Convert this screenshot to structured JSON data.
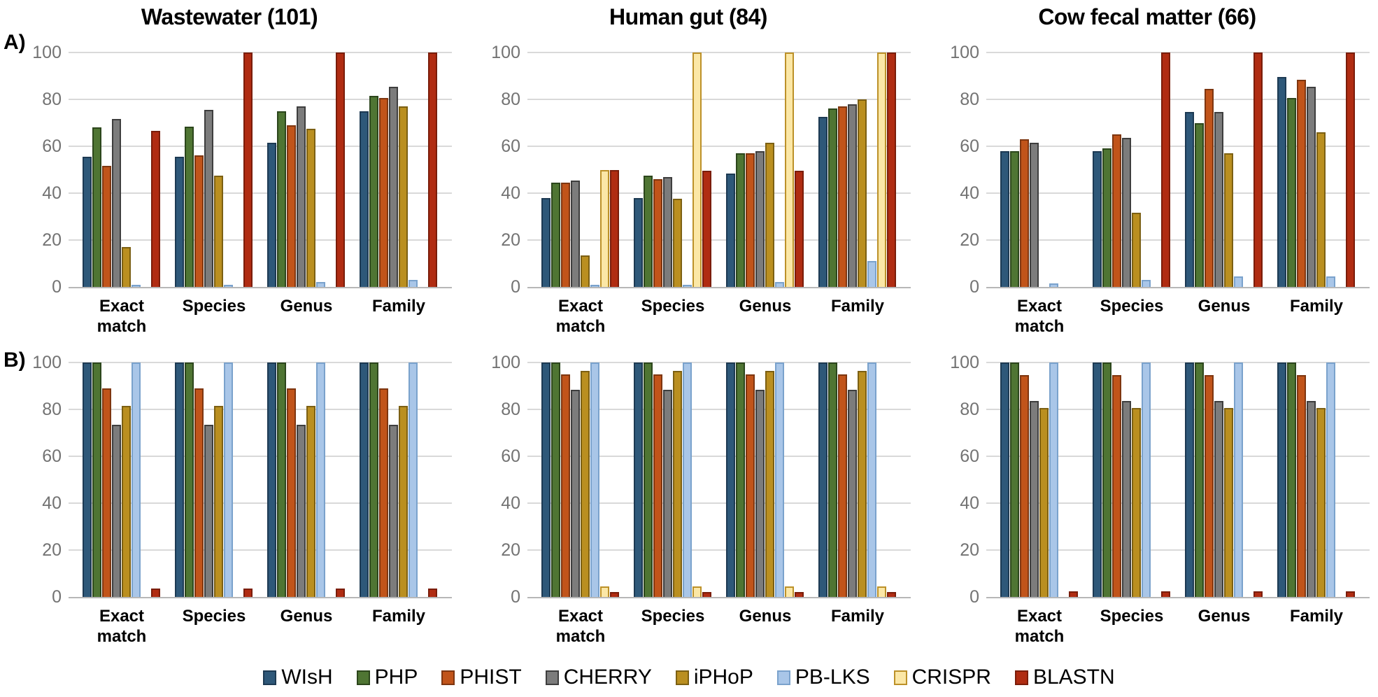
{
  "figure": {
    "panel_a_label": "A)",
    "panel_b_label": "B)"
  },
  "axes": {
    "yticks": [
      0,
      20,
      40,
      60,
      80,
      100
    ],
    "ylim": [
      0,
      100
    ],
    "categories": [
      "Exact match",
      "Species",
      "Genus",
      "Family"
    ]
  },
  "series_colors": {
    "WIsH": {
      "fill": "#2e5879",
      "border": "#1d3a53"
    },
    "PHP": {
      "fill": "#4f7533",
      "border": "#2c461c"
    },
    "PHIST": {
      "fill": "#c1541a",
      "border": "#7e3610"
    },
    "CHERRY": {
      "fill": "#7c7c7c",
      "border": "#3e3e3e"
    },
    "iPHoP": {
      "fill": "#ba8f20",
      "border": "#7c6013"
    },
    "PB-LKS": {
      "fill": "#a9c6e8",
      "border": "#7aa2cc"
    },
    "CRISPR": {
      "fill": "#fbe7a6",
      "border": "#bc9129"
    },
    "BLASTN": {
      "fill": "#b02c12",
      "border": "#7a1d0a"
    }
  },
  "legend": [
    "WIsH",
    "PHP",
    "PHIST",
    "CHERRY",
    "iPHoP",
    "PB-LKS",
    "CRISPR",
    "BLASTN"
  ],
  "chart_data": [
    {
      "type": "bar",
      "row": "A",
      "title": "Wastewater (101)",
      "categories": [
        "Exact match",
        "Species",
        "Genus",
        "Family"
      ],
      "ylim": [
        0,
        100
      ],
      "grid": true,
      "series": [
        {
          "name": "WIsH",
          "values": [
            55.5,
            55.5,
            61.5,
            75
          ]
        },
        {
          "name": "PHP",
          "values": [
            68,
            68.5,
            75,
            81.5
          ]
        },
        {
          "name": "PHIST",
          "values": [
            51.5,
            56,
            69,
            80.5
          ]
        },
        {
          "name": "CHERRY",
          "values": [
            71.5,
            75.5,
            77,
            85.5
          ]
        },
        {
          "name": "iPHoP",
          "values": [
            17,
            47.5,
            67.5,
            77
          ]
        },
        {
          "name": "PB-LKS",
          "values": [
            1,
            1,
            2,
            3
          ]
        },
        {
          "name": "CRISPR",
          "values": [
            0,
            0,
            0,
            0
          ]
        },
        {
          "name": "BLASTN",
          "values": [
            66.5,
            100,
            100,
            100
          ]
        }
      ]
    },
    {
      "type": "bar",
      "row": "A",
      "title": "Human gut (84)",
      "categories": [
        "Exact match",
        "Species",
        "Genus",
        "Family"
      ],
      "ylim": [
        0,
        100
      ],
      "grid": true,
      "series": [
        {
          "name": "WIsH",
          "values": [
            38,
            38,
            48.5,
            72.5
          ]
        },
        {
          "name": "PHP",
          "values": [
            44.5,
            47.5,
            57,
            76
          ]
        },
        {
          "name": "PHIST",
          "values": [
            44.5,
            46,
            57,
            77
          ]
        },
        {
          "name": "CHERRY",
          "values": [
            45.5,
            47,
            58,
            78
          ]
        },
        {
          "name": "iPHoP",
          "values": [
            13.5,
            37.5,
            61.5,
            80
          ]
        },
        {
          "name": "PB-LKS",
          "values": [
            1,
            1,
            2,
            11
          ]
        },
        {
          "name": "CRISPR",
          "values": [
            50,
            100,
            100,
            100
          ]
        },
        {
          "name": "BLASTN",
          "values": [
            50,
            49.5,
            49.5,
            100
          ]
        }
      ]
    },
    {
      "type": "bar",
      "row": "A",
      "title": "Cow fecal matter (66)",
      "categories": [
        "Exact match",
        "Species",
        "Genus",
        "Family"
      ],
      "ylim": [
        0,
        100
      ],
      "grid": true,
      "series": [
        {
          "name": "WIsH",
          "values": [
            58,
            58,
            74.5,
            89.5
          ]
        },
        {
          "name": "PHP",
          "values": [
            58,
            59,
            70,
            80.5
          ]
        },
        {
          "name": "PHIST",
          "values": [
            63,
            65,
            84.5,
            88.5
          ]
        },
        {
          "name": "CHERRY",
          "values": [
            61.5,
            63.5,
            74.5,
            85.5
          ]
        },
        {
          "name": "iPHoP",
          "values": [
            0,
            31.5,
            57,
            66
          ]
        },
        {
          "name": "PB-LKS",
          "values": [
            1.5,
            3,
            4.5,
            4.5
          ]
        },
        {
          "name": "CRISPR",
          "values": [
            0,
            0,
            0,
            0
          ]
        },
        {
          "name": "BLASTN",
          "values": [
            0,
            100,
            100,
            100
          ]
        }
      ]
    },
    {
      "type": "bar",
      "row": "B",
      "title": "",
      "categories": [
        "Exact match",
        "Species",
        "Genus",
        "Family"
      ],
      "ylim": [
        0,
        100
      ],
      "grid": true,
      "series": [
        {
          "name": "WIsH",
          "values": [
            100,
            100,
            100,
            100
          ]
        },
        {
          "name": "PHP",
          "values": [
            100,
            100,
            100,
            100
          ]
        },
        {
          "name": "PHIST",
          "values": [
            89,
            89,
            89,
            89
          ]
        },
        {
          "name": "CHERRY",
          "values": [
            73.5,
            73.5,
            73.5,
            73.5
          ]
        },
        {
          "name": "iPHoP",
          "values": [
            81.5,
            81.5,
            81.5,
            81.5
          ]
        },
        {
          "name": "PB-LKS",
          "values": [
            100,
            100,
            100,
            100
          ]
        },
        {
          "name": "CRISPR",
          "values": [
            0,
            0,
            0,
            0
          ]
        },
        {
          "name": "BLASTN",
          "values": [
            3.5,
            3.5,
            3.5,
            3.5
          ]
        }
      ]
    },
    {
      "type": "bar",
      "row": "B",
      "title": "",
      "categories": [
        "Exact match",
        "Species",
        "Genus",
        "Family"
      ],
      "ylim": [
        0,
        100
      ],
      "grid": true,
      "series": [
        {
          "name": "WIsH",
          "values": [
            100,
            100,
            100,
            100
          ]
        },
        {
          "name": "PHP",
          "values": [
            100,
            100,
            100,
            100
          ]
        },
        {
          "name": "PHIST",
          "values": [
            95,
            95,
            95,
            95
          ]
        },
        {
          "name": "CHERRY",
          "values": [
            88.5,
            88.5,
            88.5,
            88.5
          ]
        },
        {
          "name": "iPHoP",
          "values": [
            96.5,
            96.5,
            96.5,
            96.5
          ]
        },
        {
          "name": "PB-LKS",
          "values": [
            100,
            100,
            100,
            100
          ]
        },
        {
          "name": "CRISPR",
          "values": [
            4.5,
            4.5,
            4.5,
            4.5
          ]
        },
        {
          "name": "BLASTN",
          "values": [
            2,
            2,
            2,
            2
          ]
        }
      ]
    },
    {
      "type": "bar",
      "row": "B",
      "title": "",
      "categories": [
        "Exact match",
        "Species",
        "Genus",
        "Family"
      ],
      "ylim": [
        0,
        100
      ],
      "grid": true,
      "series": [
        {
          "name": "WIsH",
          "values": [
            100,
            100,
            100,
            100
          ]
        },
        {
          "name": "PHP",
          "values": [
            100,
            100,
            100,
            100
          ]
        },
        {
          "name": "PHIST",
          "values": [
            94.5,
            94.5,
            94.5,
            94.5
          ]
        },
        {
          "name": "CHERRY",
          "values": [
            83.5,
            83.5,
            83.5,
            83.5
          ]
        },
        {
          "name": "iPHoP",
          "values": [
            80.5,
            80.5,
            80.5,
            80.5
          ]
        },
        {
          "name": "PB-LKS",
          "values": [
            100,
            100,
            100,
            100
          ]
        },
        {
          "name": "CRISPR",
          "values": [
            0,
            0,
            0,
            0
          ]
        },
        {
          "name": "BLASTN",
          "values": [
            2.5,
            2.5,
            2.5,
            2.5
          ]
        }
      ]
    }
  ]
}
